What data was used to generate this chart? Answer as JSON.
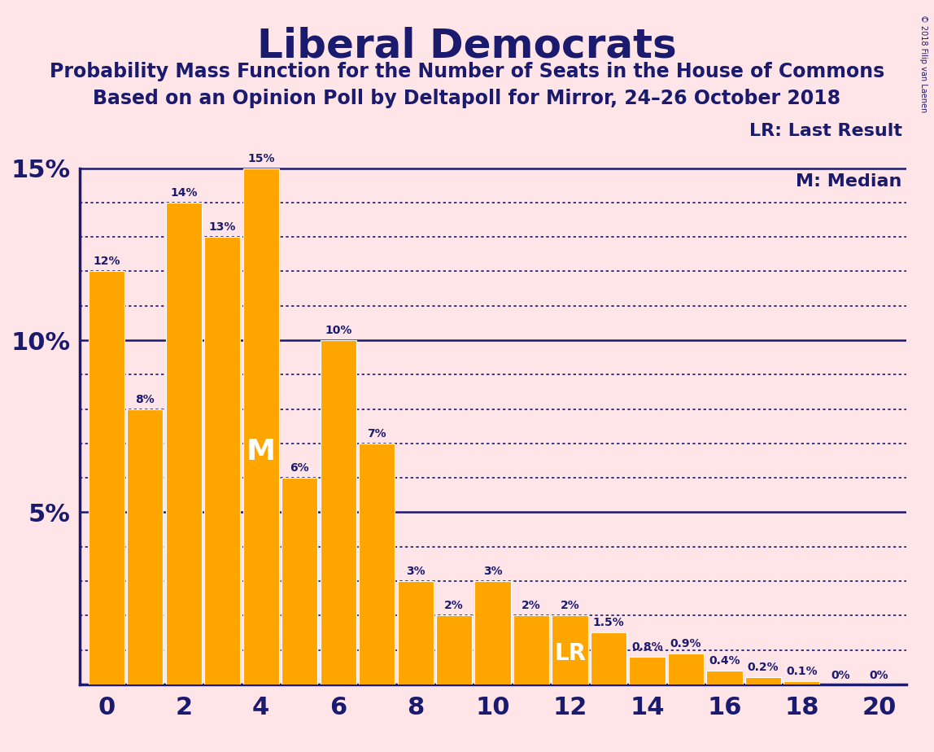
{
  "title": "Liberal Democrats",
  "subtitle1": "Probability Mass Function for the Number of Seats in the House of Commons",
  "subtitle2": "Based on an Opinion Poll by Deltapoll for Mirror, 24–26 October 2018",
  "copyright": "© 2018 Filip van Laenen",
  "bar_color": "#FFA500",
  "background_color": "#FFE4E8",
  "text_color": "#1a1a6e",
  "categories": [
    0,
    1,
    2,
    3,
    4,
    5,
    6,
    7,
    8,
    9,
    10,
    11,
    12,
    13,
    14,
    15,
    16,
    17,
    18,
    19,
    20
  ],
  "values": [
    12,
    8,
    14,
    13,
    15,
    6,
    10,
    7,
    3,
    2,
    3,
    2,
    2,
    1.5,
    0.8,
    0.9,
    0.4,
    0.2,
    0.1,
    0,
    0
  ],
  "labels": [
    "12%",
    "8%",
    "14%",
    "13%",
    "15%",
    "6%",
    "10%",
    "7%",
    "3%",
    "2%",
    "3%",
    "2%",
    "2%",
    "1.5%",
    "0.8%",
    "0.9%",
    "0.4%",
    "0.2%",
    "0.1%",
    "0%",
    "0%"
  ],
  "median_bar": 4,
  "lr_bar": 12,
  "lr_label": "LR",
  "median_label": "M",
  "solid_line_values": [
    5,
    10,
    15
  ],
  "dotted_line_values": [
    1,
    2,
    3,
    4,
    6,
    7,
    8,
    9,
    11,
    12,
    13,
    14
  ],
  "ylim": [
    0,
    16.5
  ],
  "ytick_vals": [
    5,
    10,
    15
  ],
  "ytick_labels": [
    "5%",
    "10%",
    "15%"
  ],
  "legend_lr": "LR: Last Result",
  "legend_m": "M: Median",
  "xlabel_vals": [
    0,
    2,
    4,
    6,
    8,
    10,
    12,
    14,
    16,
    18,
    20
  ],
  "label_fontsize": 10,
  "tick_fontsize": 22,
  "title_fontsize": 36,
  "sub1_fontsize": 17,
  "sub2_fontsize": 17,
  "legend_fontsize": 16
}
